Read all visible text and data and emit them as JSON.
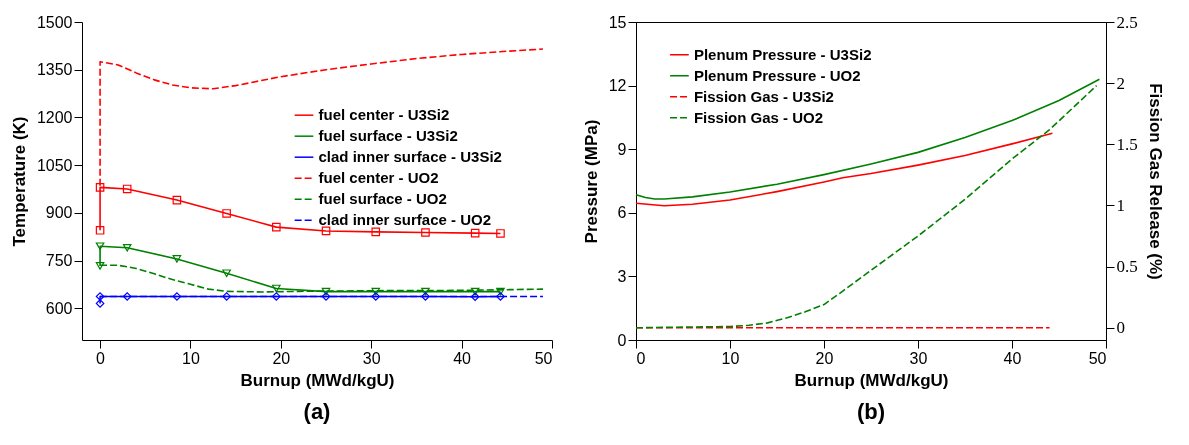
{
  "chart_data": [
    {
      "type": "line",
      "title": "(a)",
      "xlabel": "Burnup (MWd/kgU)",
      "ylabel": "Temperature (K)",
      "xlim": [
        -2,
        50
      ],
      "xticks": [
        0,
        10,
        20,
        30,
        40,
        50
      ],
      "ylim": [
        500,
        1500
      ],
      "yticks": [
        600,
        750,
        900,
        1050,
        1200,
        1350,
        1500
      ],
      "legend": "top right",
      "series": [
        {
          "name": "fuel center - U3Si2",
          "color": "#ff0000",
          "line_style": "solid",
          "marker": "square",
          "x": [
            0,
            0,
            3,
            8.5,
            14,
            19.5,
            25,
            30.5,
            36,
            41.5,
            44.3
          ],
          "values": [
            845,
            980,
            975,
            940,
            898,
            855,
            843,
            840,
            838,
            836,
            835
          ]
        },
        {
          "name": "fuel surface - U3Si2",
          "color": "#008000",
          "line_style": "solid",
          "marker": "triangle",
          "x": [
            0,
            0,
            3,
            8.5,
            14,
            19.5,
            25,
            30.5,
            36,
            41.5,
            44.3
          ],
          "values": [
            733,
            795,
            790,
            755,
            710,
            662,
            652,
            652,
            652,
            652,
            652
          ]
        },
        {
          "name": "clad inner surface - U3Si2",
          "color": "#0000ff",
          "line_style": "solid",
          "marker": "diamond",
          "x": [
            0,
            0,
            3,
            8.5,
            14,
            19.5,
            25,
            30.5,
            36,
            41.5,
            44.3
          ],
          "values": [
            615,
            637,
            637,
            637,
            637,
            637,
            637,
            637,
            637,
            636,
            637
          ]
        },
        {
          "name": "fuel center - UO2",
          "color": "#ff0000",
          "line_style": "dashed",
          "marker": "none",
          "x": [
            0,
            0,
            2,
            4,
            6,
            8,
            10,
            12.5,
            15,
            20,
            25,
            30,
            35,
            40,
            45,
            49
          ],
          "values": [
            985,
            1375,
            1365,
            1340,
            1318,
            1302,
            1293,
            1290,
            1300,
            1328,
            1350,
            1368,
            1385,
            1398,
            1408,
            1415
          ]
        },
        {
          "name": "fuel surface - UO2",
          "color": "#008000",
          "line_style": "dashed",
          "marker": "none",
          "x": [
            0,
            2,
            4,
            6,
            8,
            10,
            12,
            14,
            18,
            22,
            30,
            40,
            49
          ],
          "values": [
            735,
            735,
            725,
            708,
            690,
            675,
            660,
            653,
            651,
            653,
            655,
            656,
            660
          ]
        },
        {
          "name": "clad inner surface - UO2",
          "color": "#0000ff",
          "line_style": "dashed",
          "marker": "none",
          "x": [
            0,
            10,
            49
          ],
          "values": [
            637,
            637,
            637
          ]
        }
      ]
    },
    {
      "type": "line",
      "title": "(b)",
      "xlabel": "Burnup (MWd/kgU)",
      "ylabel": "Pressure (MPa)",
      "y2label": "Fission Gas Release (%)",
      "xlim": [
        0,
        50
      ],
      "xticks": [
        0,
        10,
        20,
        30,
        40,
        50
      ],
      "ylim": [
        0,
        15
      ],
      "yticks": [
        0,
        3,
        6,
        9,
        12,
        15
      ],
      "y2lim": [
        -0.1,
        2.5
      ],
      "y2ticks": [
        0,
        0.5,
        1,
        1.5,
        2,
        2.5
      ],
      "legend": "top left",
      "series": [
        {
          "name": "Plenum Pressure - U3Si2",
          "color": "#ff0000",
          "line_style": "solid",
          "x": [
            0,
            3,
            6,
            10,
            15,
            20,
            22,
            25,
            30,
            35,
            40,
            44.3
          ],
          "values": [
            6.45,
            6.33,
            6.4,
            6.6,
            7.0,
            7.45,
            7.65,
            7.85,
            8.25,
            8.7,
            9.25,
            9.75
          ]
        },
        {
          "name": "Plenum Pressure - UO2",
          "color": "#008000",
          "line_style": "solid",
          "x": [
            0,
            1,
            2,
            3,
            6,
            10,
            15,
            20,
            25,
            30,
            35,
            40,
            45,
            49.3
          ],
          "values": [
            6.85,
            6.72,
            6.65,
            6.65,
            6.75,
            6.98,
            7.35,
            7.8,
            8.3,
            8.85,
            9.55,
            10.35,
            11.3,
            12.3
          ]
        },
        {
          "name": "Fission Gas - U3Si2",
          "color": "#ff0000",
          "line_style": "dashed",
          "axis": "y2",
          "x": [
            0,
            44
          ],
          "values": [
            0,
            0
          ]
        },
        {
          "name": "Fission Gas - UO2",
          "color": "#008000",
          "line_style": "dashed",
          "axis": "y2",
          "x": [
            0,
            10,
            12,
            14,
            16,
            18,
            20,
            22,
            25,
            30,
            35,
            40,
            44,
            49
          ],
          "values": [
            0,
            0.01,
            0.02,
            0.04,
            0.08,
            0.13,
            0.19,
            0.3,
            0.47,
            0.75,
            1.05,
            1.38,
            1.62,
            1.98
          ]
        }
      ]
    }
  ]
}
